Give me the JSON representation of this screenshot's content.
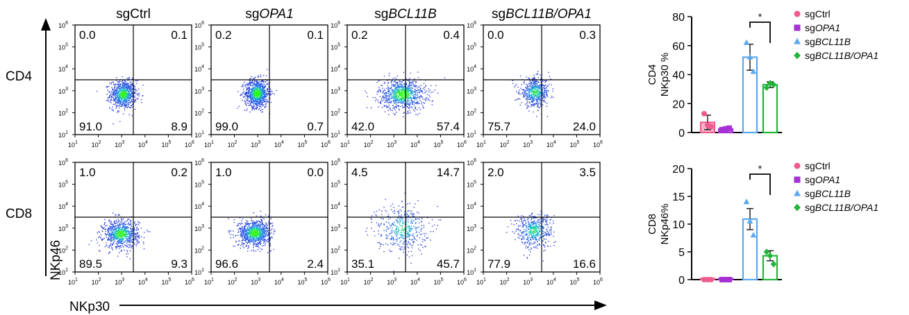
{
  "figure": {
    "flow_x_axis_label": "NKp30",
    "flow_y_axis_label": "NKp46",
    "columns": [
      {
        "prefix": "sg",
        "gene": "Ctrl",
        "italic": false
      },
      {
        "prefix": "sg",
        "gene": "OPA1",
        "italic": true
      },
      {
        "prefix": "sg",
        "gene": "BCL11B",
        "italic": true
      },
      {
        "prefix": "sg",
        "gene": "BCL11B/OPA1",
        "italic": true
      }
    ],
    "row_labels": [
      "CD4",
      "CD8"
    ],
    "axis_ticks": {
      "bases": [
        "10",
        "10",
        "10",
        "10",
        "10",
        "10"
      ],
      "exponents": [
        "1",
        "2",
        "3",
        "4",
        "5",
        "6"
      ]
    }
  },
  "chart_data": [
    {
      "type": "scatter",
      "subtype": "flow-cytometry-quadrant-plots",
      "xlabel": "NKp30",
      "ylabel": "NKp46",
      "x_scale": "log",
      "y_scale": "log",
      "xlim": [
        10,
        1000000
      ],
      "ylim": [
        10,
        1000000
      ],
      "panels": [
        {
          "row": "CD4",
          "condition": "sgCtrl",
          "quadrants": {
            "top_left": "0.0",
            "top_right": "0.1",
            "bottom_left": "91.0",
            "bottom_right": "8.9"
          },
          "center_log": [
            3.05,
            2.85
          ],
          "spread_log": [
            0.28,
            0.32
          ],
          "density": 0.9
        },
        {
          "row": "CD4",
          "condition": "sgOPA1",
          "quadrants": {
            "top_left": "0.2",
            "top_right": "0.1",
            "bottom_left": "99.0",
            "bottom_right": "0.7"
          },
          "center_log": [
            2.95,
            2.9
          ],
          "spread_log": [
            0.26,
            0.32
          ],
          "density": 1.0
        },
        {
          "row": "CD4",
          "condition": "sgBCL11B",
          "quadrants": {
            "top_left": "0.2",
            "top_right": "0.4",
            "bottom_left": "42.0",
            "bottom_right": "57.4"
          },
          "center_log": [
            3.35,
            2.85
          ],
          "spread_log": [
            0.5,
            0.35
          ],
          "density": 1.0
        },
        {
          "row": "CD4",
          "condition": "sgBCL11B/OPA1",
          "quadrants": {
            "top_left": "0.0",
            "top_right": "0.3",
            "bottom_left": "75.7",
            "bottom_right": "24.0"
          },
          "center_log": [
            3.2,
            2.95
          ],
          "spread_log": [
            0.32,
            0.32
          ],
          "density": 0.65
        },
        {
          "row": "CD8",
          "condition": "sgCtrl",
          "quadrants": {
            "top_left": "1.0",
            "top_right": "0.2",
            "bottom_left": "89.5",
            "bottom_right": "9.3"
          },
          "center_log": [
            2.95,
            2.75
          ],
          "spread_log": [
            0.38,
            0.32
          ],
          "density": 0.9
        },
        {
          "row": "CD8",
          "condition": "sgOPA1",
          "quadrants": {
            "top_left": "1.0",
            "top_right": "0.0",
            "bottom_left": "96.6",
            "bottom_right": "2.4"
          },
          "center_log": [
            2.85,
            2.8
          ],
          "spread_log": [
            0.35,
            0.3
          ],
          "density": 1.0
        },
        {
          "row": "CD8",
          "condition": "sgBCL11B",
          "quadrants": {
            "top_left": "4.5",
            "top_right": "14.7",
            "bottom_left": "35.1",
            "bottom_right": "45.7"
          },
          "center_log": [
            3.35,
            3.0
          ],
          "spread_log": [
            0.55,
            0.55
          ],
          "density": 0.5
        },
        {
          "row": "CD8",
          "condition": "sgBCL11B/OPA1",
          "quadrants": {
            "top_left": "2.0",
            "top_right": "3.5",
            "bottom_left": "77.9",
            "bottom_right": "16.6"
          },
          "center_log": [
            3.15,
            2.9
          ],
          "spread_log": [
            0.4,
            0.4
          ],
          "density": 0.55
        }
      ]
    },
    {
      "type": "bar",
      "row": "CD4",
      "ylabel_lines": [
        "CD4",
        "NKp30 %"
      ],
      "ylim": [
        0,
        80
      ],
      "yticks": [
        0,
        20,
        40,
        60,
        80
      ],
      "categories": [
        "sgCtrl",
        "sgOPA1",
        "sgBCL11B",
        "sgBCL11B/OPA1"
      ],
      "values": [
        7,
        2.5,
        52,
        33
      ],
      "errors": [
        5,
        0.5,
        9,
        2
      ],
      "points": [
        [
          13,
          5,
          4
        ],
        [
          2,
          2.5,
          3
        ],
        [
          62,
          52,
          42
        ],
        [
          31,
          34,
          33
        ]
      ],
      "significance": {
        "between": [
          2,
          3
        ],
        "label": "*"
      }
    },
    {
      "type": "bar",
      "row": "CD8",
      "ylabel_lines": [
        "CD8",
        "NKp46%"
      ],
      "ylim": [
        0,
        20
      ],
      "yticks": [
        0,
        5,
        10,
        15,
        20
      ],
      "categories": [
        "sgCtrl",
        "sgOPA1",
        "sgBCL11B",
        "sgBCL11B/OPA1"
      ],
      "values": [
        0.1,
        0.1,
        10.9,
        4.3
      ],
      "errors": [
        0.05,
        0.05,
        1.9,
        0.9
      ],
      "points": [
        [
          0,
          0,
          0
        ],
        [
          0,
          0,
          0
        ],
        [
          14,
          10.5,
          8
        ],
        [
          5,
          4.3,
          2.8
        ]
      ],
      "significance": {
        "between": [
          2,
          3
        ],
        "label": "*"
      }
    }
  ],
  "legend": {
    "entries": [
      {
        "prefix": "sg",
        "gene": "Ctrl",
        "italic": false,
        "marker": "circle",
        "color": "#ef5b8c"
      },
      {
        "prefix": "sg",
        "gene": "OPA1",
        "italic": true,
        "marker": "square",
        "color": "#a72fd6"
      },
      {
        "prefix": "sg",
        "gene": "BCL11B",
        "italic": true,
        "marker": "triangle",
        "color": "#5aa8ef"
      },
      {
        "prefix": "sg",
        "gene": "BCL11B/OPA1",
        "italic": true,
        "marker": "diamond",
        "color": "#22b53a"
      }
    ]
  },
  "colors": {
    "bar_strokes": [
      "#ef5b8c",
      "#a72fd6",
      "#5aa8ef",
      "#22b53a"
    ],
    "bar_fills": [
      "#f7b3c8",
      "#c970ea",
      "#ffffff",
      "#ffffff"
    ],
    "density_low": "#2b3fd9",
    "density_high": "#1aff00"
  }
}
